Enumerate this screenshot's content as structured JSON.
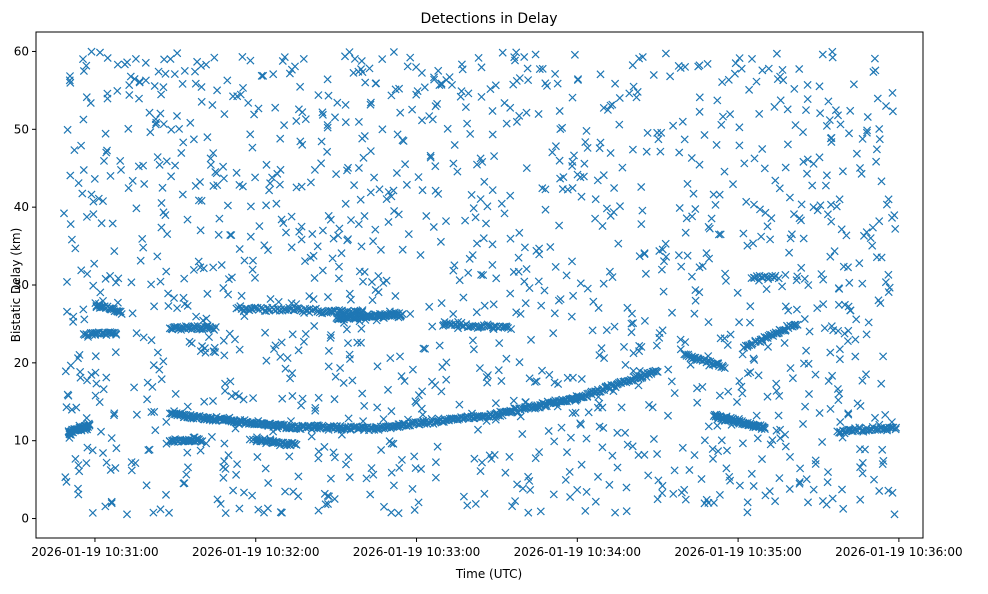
{
  "chart_data": {
    "type": "scatter",
    "title": "Detections in Delay",
    "xlabel": "Time (UTC)",
    "ylabel": "Bistatic Delay (km)",
    "marker": "x",
    "color": "#1f77b4",
    "grid": false,
    "legend": "none",
    "x_start": "2026-01-19 10:30:48",
    "x_end": "2026-01-19 10:35:59",
    "xlim": [
      "2026-01-19 10:30:38",
      "2026-01-19 10:36:09"
    ],
    "ylim": [
      -2.5,
      62.5
    ],
    "x_ticks": [
      "2026-01-19 10:31:00",
      "2026-01-19 10:32:00",
      "2026-01-19 10:33:00",
      "2026-01-19 10:34:00",
      "2026-01-19 10:35:00",
      "2026-01-19 10:36:00"
    ],
    "y_ticks": [
      0,
      10,
      20,
      30,
      40,
      50,
      60
    ],
    "clutter": {
      "count": 1400,
      "y_range": [
        0.5,
        60
      ]
    },
    "tracks": [
      {
        "from": [
          "2026-01-19 10:31:28",
          13.5
        ],
        "to": [
          "2026-01-19 10:32:10",
          11.8
        ],
        "count": 120
      },
      {
        "from": [
          "2026-01-19 10:32:10",
          11.8
        ],
        "to": [
          "2026-01-19 10:32:45",
          11.6
        ],
        "count": 90
      },
      {
        "from": [
          "2026-01-19 10:32:45",
          11.6
        ],
        "to": [
          "2026-01-19 10:33:30",
          13.4
        ],
        "count": 110
      },
      {
        "from": [
          "2026-01-19 10:33:30",
          13.4
        ],
        "to": [
          "2026-01-19 10:34:00",
          15.5
        ],
        "count": 80
      },
      {
        "from": [
          "2026-01-19 10:34:00",
          15.5
        ],
        "to": [
          "2026-01-19 10:34:30",
          19.0
        ],
        "count": 70
      },
      {
        "from": [
          "2026-01-19 10:34:51",
          13.2
        ],
        "to": [
          "2026-01-19 10:35:10",
          11.6
        ],
        "count": 70
      },
      {
        "from": [
          "2026-01-19 10:35:37",
          11.2
        ],
        "to": [
          "2026-01-19 10:35:59",
          11.7
        ],
        "count": 45
      },
      {
        "from": [
          "2026-01-19 10:30:50",
          11.0
        ],
        "to": [
          "2026-01-19 10:30:58",
          12.0
        ],
        "count": 45
      },
      {
        "from": [
          "2026-01-19 10:30:56",
          23.5
        ],
        "to": [
          "2026-01-19 10:31:08",
          24.0
        ],
        "count": 30
      },
      {
        "from": [
          "2026-01-19 10:31:00",
          27.5
        ],
        "to": [
          "2026-01-19 10:31:10",
          26.5
        ],
        "count": 25
      },
      {
        "from": [
          "2026-01-19 10:31:28",
          24.5
        ],
        "to": [
          "2026-01-19 10:31:45",
          24.5
        ],
        "count": 40
      },
      {
        "from": [
          "2026-01-19 10:31:53",
          27.0
        ],
        "to": [
          "2026-01-19 10:32:40",
          26.5
        ],
        "count": 80
      },
      {
        "from": [
          "2026-01-19 10:32:30",
          25.8
        ],
        "to": [
          "2026-01-19 10:32:55",
          26.2
        ],
        "count": 90
      },
      {
        "from": [
          "2026-01-19 10:33:10",
          25.0
        ],
        "to": [
          "2026-01-19 10:33:35",
          24.5
        ],
        "count": 45
      },
      {
        "from": [
          "2026-01-19 10:31:28",
          10.0
        ],
        "to": [
          "2026-01-19 10:31:40",
          10.0
        ],
        "count": 35
      },
      {
        "from": [
          "2026-01-19 10:32:00",
          10.0
        ],
        "to": [
          "2026-01-19 10:32:15",
          9.5
        ],
        "count": 40
      },
      {
        "from": [
          "2026-01-19 10:34:40",
          21.0
        ],
        "to": [
          "2026-01-19 10:34:55",
          19.5
        ],
        "count": 35
      },
      {
        "from": [
          "2026-01-19 10:35:02",
          22.0
        ],
        "to": [
          "2026-01-19 10:35:22",
          25.0
        ],
        "count": 45
      },
      {
        "from": [
          "2026-01-19 10:35:05",
          31.0
        ],
        "to": [
          "2026-01-19 10:35:15",
          31.0
        ],
        "count": 15
      }
    ]
  }
}
